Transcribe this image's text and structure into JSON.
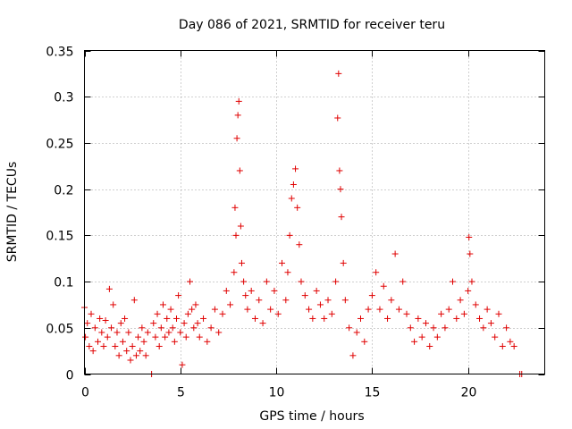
{
  "chart_data": {
    "type": "scatter",
    "title": "Day 086 of 2021, SRMTID for receiver teru",
    "xlabel": "GPS time / hours",
    "ylabel": "SRMTID / TECUs",
    "xlim": [
      0,
      24
    ],
    "ylim": [
      0,
      0.35
    ],
    "xticks": [
      0,
      5,
      10,
      15,
      20
    ],
    "xtick_labels": [
      "0",
      "5",
      "10",
      "15",
      "20"
    ],
    "yticks": [
      0,
      0.05,
      0.1,
      0.15,
      0.2,
      0.25,
      0.3,
      0.35
    ],
    "ytick_labels": [
      "0",
      "0.05",
      "0.1",
      "0.15",
      "0.2",
      "0.25",
      "0.3",
      "0.35"
    ],
    "grid": true,
    "marker": "+",
    "marker_color": "#e00000",
    "series": [
      {
        "name": "SRMTID",
        "points": [
          [
            0.0,
            0.072
          ],
          [
            0.05,
            0.04
          ],
          [
            0.15,
            0.055
          ],
          [
            0.25,
            0.03
          ],
          [
            0.35,
            0.065
          ],
          [
            0.45,
            0.025
          ],
          [
            0.55,
            0.05
          ],
          [
            0.7,
            0.035
          ],
          [
            0.8,
            0.06
          ],
          [
            0.9,
            0.045
          ],
          [
            1.0,
            0.03
          ],
          [
            1.1,
            0.058
          ],
          [
            1.2,
            0.04
          ],
          [
            1.3,
            0.092
          ],
          [
            1.4,
            0.05
          ],
          [
            1.5,
            0.075
          ],
          [
            1.6,
            0.03
          ],
          [
            1.7,
            0.045
          ],
          [
            1.8,
            0.02
          ],
          [
            1.9,
            0.055
          ],
          [
            2.0,
            0.035
          ],
          [
            2.1,
            0.06
          ],
          [
            2.2,
            0.025
          ],
          [
            2.3,
            0.045
          ],
          [
            2.4,
            0.015
          ],
          [
            2.5,
            0.03
          ],
          [
            2.6,
            0.08
          ],
          [
            2.7,
            0.02
          ],
          [
            2.8,
            0.04
          ],
          [
            2.9,
            0.025
          ],
          [
            3.0,
            0.05
          ],
          [
            3.1,
            0.035
          ],
          [
            3.2,
            0.02
          ],
          [
            3.3,
            0.045
          ],
          [
            3.5,
            0.0
          ],
          [
            3.6,
            0.055
          ],
          [
            3.7,
            0.04
          ],
          [
            3.8,
            0.065
          ],
          [
            3.9,
            0.03
          ],
          [
            4.0,
            0.05
          ],
          [
            4.1,
            0.075
          ],
          [
            4.2,
            0.04
          ],
          [
            4.3,
            0.06
          ],
          [
            4.4,
            0.045
          ],
          [
            4.5,
            0.07
          ],
          [
            4.6,
            0.05
          ],
          [
            4.7,
            0.035
          ],
          [
            4.8,
            0.06
          ],
          [
            4.9,
            0.085
          ],
          [
            5.0,
            0.045
          ],
          [
            5.1,
            0.01
          ],
          [
            5.2,
            0.055
          ],
          [
            5.3,
            0.04
          ],
          [
            5.4,
            0.065
          ],
          [
            5.5,
            0.1
          ],
          [
            5.6,
            0.07
          ],
          [
            5.7,
            0.05
          ],
          [
            5.8,
            0.075
          ],
          [
            5.9,
            0.055
          ],
          [
            6.0,
            0.04
          ],
          [
            6.2,
            0.06
          ],
          [
            6.4,
            0.035
          ],
          [
            6.6,
            0.05
          ],
          [
            6.8,
            0.07
          ],
          [
            7.0,
            0.045
          ],
          [
            7.2,
            0.065
          ],
          [
            7.4,
            0.09
          ],
          [
            7.6,
            0.075
          ],
          [
            7.8,
            0.11
          ],
          [
            7.85,
            0.18
          ],
          [
            7.9,
            0.15
          ],
          [
            7.95,
            0.255
          ],
          [
            8.0,
            0.28
          ],
          [
            8.05,
            0.295
          ],
          [
            8.1,
            0.22
          ],
          [
            8.15,
            0.16
          ],
          [
            8.2,
            0.12
          ],
          [
            8.3,
            0.1
          ],
          [
            8.4,
            0.085
          ],
          [
            8.5,
            0.07
          ],
          [
            8.7,
            0.09
          ],
          [
            8.9,
            0.06
          ],
          [
            9.1,
            0.08
          ],
          [
            9.3,
            0.055
          ],
          [
            9.5,
            0.1
          ],
          [
            9.7,
            0.07
          ],
          [
            9.9,
            0.09
          ],
          [
            10.1,
            0.065
          ],
          [
            10.3,
            0.12
          ],
          [
            10.5,
            0.08
          ],
          [
            10.6,
            0.11
          ],
          [
            10.7,
            0.15
          ],
          [
            10.8,
            0.19
          ],
          [
            10.9,
            0.205
          ],
          [
            11.0,
            0.222
          ],
          [
            11.1,
            0.18
          ],
          [
            11.2,
            0.14
          ],
          [
            11.3,
            0.1
          ],
          [
            11.5,
            0.085
          ],
          [
            11.7,
            0.07
          ],
          [
            11.9,
            0.06
          ],
          [
            12.1,
            0.09
          ],
          [
            12.3,
            0.075
          ],
          [
            12.5,
            0.06
          ],
          [
            12.7,
            0.08
          ],
          [
            12.9,
            0.065
          ],
          [
            13.1,
            0.1
          ],
          [
            13.2,
            0.277
          ],
          [
            13.25,
            0.325
          ],
          [
            13.3,
            0.22
          ],
          [
            13.35,
            0.2
          ],
          [
            13.4,
            0.17
          ],
          [
            13.5,
            0.12
          ],
          [
            13.6,
            0.08
          ],
          [
            13.8,
            0.05
          ],
          [
            14.0,
            0.02
          ],
          [
            14.2,
            0.045
          ],
          [
            14.4,
            0.06
          ],
          [
            14.6,
            0.035
          ],
          [
            14.8,
            0.07
          ],
          [
            15.0,
            0.085
          ],
          [
            15.2,
            0.11
          ],
          [
            15.4,
            0.07
          ],
          [
            15.6,
            0.095
          ],
          [
            15.8,
            0.06
          ],
          [
            16.0,
            0.08
          ],
          [
            16.2,
            0.13
          ],
          [
            16.4,
            0.07
          ],
          [
            16.6,
            0.1
          ],
          [
            16.8,
            0.065
          ],
          [
            17.0,
            0.05
          ],
          [
            17.2,
            0.035
          ],
          [
            17.4,
            0.06
          ],
          [
            17.6,
            0.04
          ],
          [
            17.8,
            0.055
          ],
          [
            18.0,
            0.03
          ],
          [
            18.2,
            0.05
          ],
          [
            18.4,
            0.04
          ],
          [
            18.6,
            0.065
          ],
          [
            18.8,
            0.05
          ],
          [
            19.0,
            0.07
          ],
          [
            19.2,
            0.1
          ],
          [
            19.4,
            0.06
          ],
          [
            19.6,
            0.08
          ],
          [
            19.8,
            0.065
          ],
          [
            20.0,
            0.09
          ],
          [
            20.05,
            0.148
          ],
          [
            20.1,
            0.13
          ],
          [
            20.2,
            0.1
          ],
          [
            20.4,
            0.075
          ],
          [
            20.6,
            0.06
          ],
          [
            20.8,
            0.05
          ],
          [
            21.0,
            0.07
          ],
          [
            21.2,
            0.055
          ],
          [
            21.4,
            0.04
          ],
          [
            21.6,
            0.065
          ],
          [
            21.8,
            0.03
          ],
          [
            22.0,
            0.05
          ],
          [
            22.2,
            0.035
          ],
          [
            22.4,
            0.03
          ],
          [
            22.7,
            0.0
          ],
          [
            22.8,
            0.0
          ]
        ]
      }
    ]
  }
}
